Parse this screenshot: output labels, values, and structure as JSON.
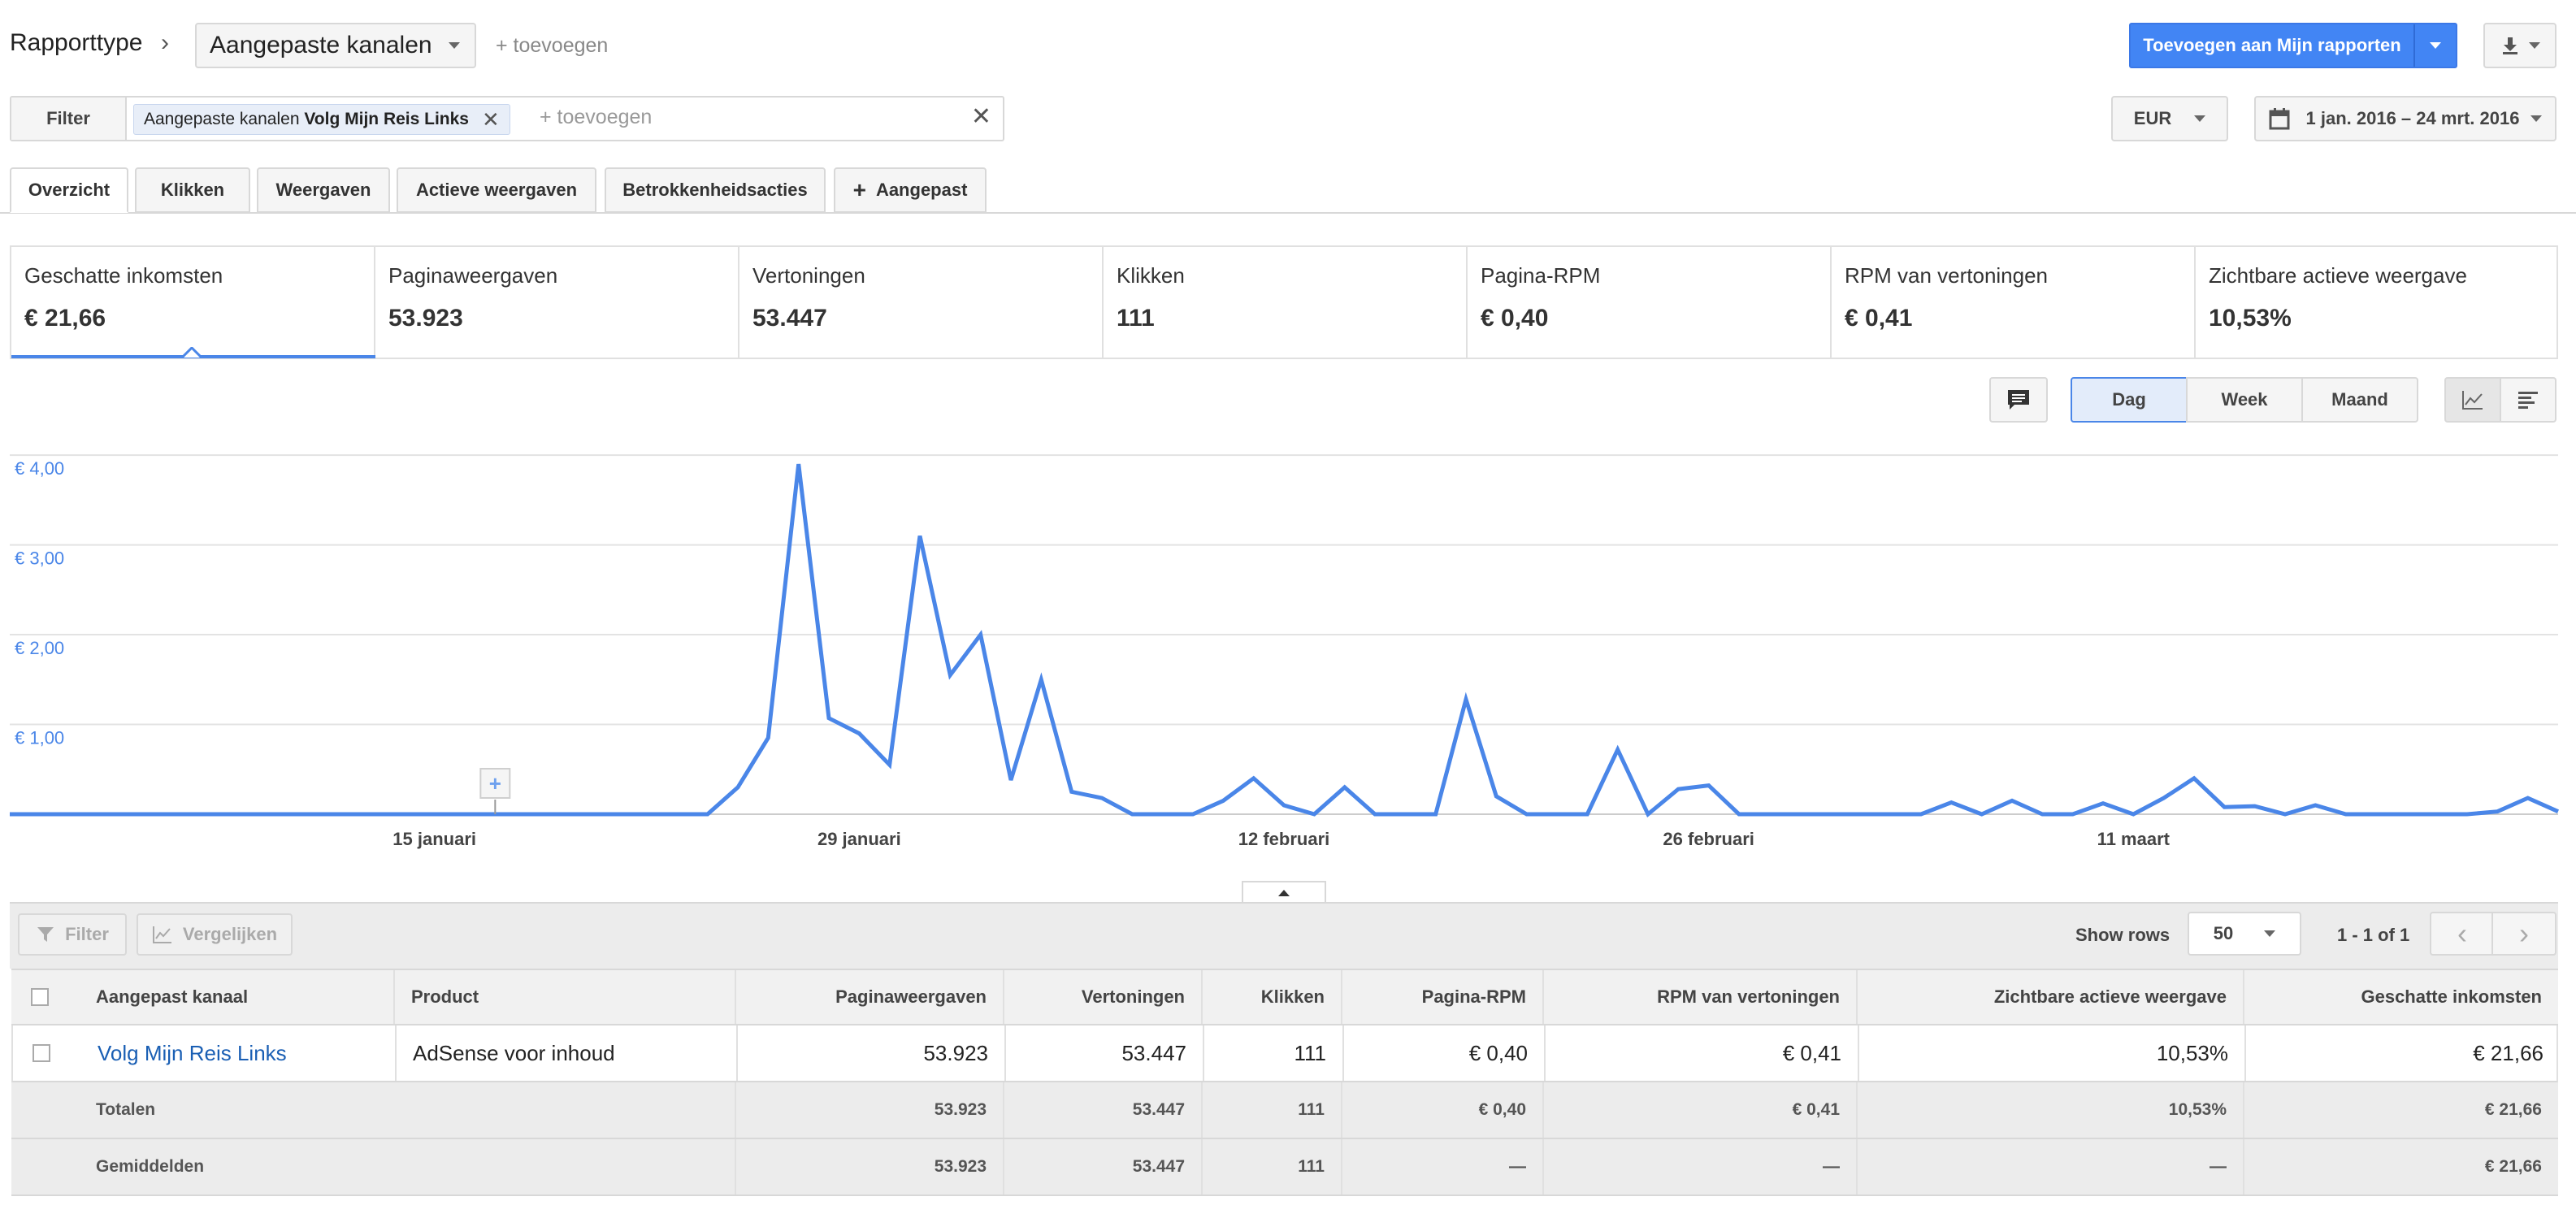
{
  "header": {
    "report_type_label": "Rapporttype",
    "report_select": "Aangepaste kanalen",
    "add_link": "+ toevoegen",
    "add_to_reports": "Toevoegen aan Mijn rapporten"
  },
  "filterbar": {
    "filter_label": "Filter",
    "chip_prefix": "Aangepaste kanalen",
    "chip_value": "Volg Mijn Reis Links",
    "add_placeholder": "+ toevoegen",
    "currency": "EUR",
    "date_range": "1 jan. 2016 – 24 mrt. 2016"
  },
  "tabs": [
    {
      "label": "Overzicht"
    },
    {
      "label": "Klikken"
    },
    {
      "label": "Weergaven"
    },
    {
      "label": "Actieve weergaven"
    },
    {
      "label": "Betrokkenheidsacties"
    },
    {
      "label": "Aangepast"
    }
  ],
  "metrics": [
    {
      "label": "Geschatte inkomsten",
      "value": "€ 21,66"
    },
    {
      "label": "Paginaweergaven",
      "value": "53.923"
    },
    {
      "label": "Vertoningen",
      "value": "53.447"
    },
    {
      "label": "Klikken",
      "value": "111"
    },
    {
      "label": "Pagina-RPM",
      "value": "€ 0,40"
    },
    {
      "label": "RPM van vertoningen",
      "value": "€ 0,41"
    },
    {
      "label": "Zichtbare actieve weergave",
      "value": "10,53%"
    }
  ],
  "granularity": {
    "day": "Dag",
    "week": "Week",
    "month": "Maand"
  },
  "chart_data": {
    "type": "line",
    "yticks": [
      "€ 4,00",
      "€ 3,00",
      "€ 2,00",
      "€ 1,00"
    ],
    "ylim": [
      0,
      4.2
    ],
    "xticks": [
      {
        "label": "15 januari",
        "day": 14
      },
      {
        "label": "29 januari",
        "day": 28
      },
      {
        "label": "12 februari",
        "day": 42
      },
      {
        "label": "26 februari",
        "day": 56
      },
      {
        "label": "11 maart",
        "day": 70
      }
    ],
    "annotation_day": 16,
    "series": [
      {
        "color": "#4a86e8",
        "values": [
          0,
          0,
          0,
          0,
          0,
          0,
          0,
          0,
          0,
          0,
          0,
          0,
          0,
          0,
          0,
          0,
          0,
          0,
          0,
          0,
          0,
          0,
          0,
          0,
          0.3,
          0.85,
          3.9,
          1.07,
          0.9,
          0.55,
          3.1,
          1.55,
          2.0,
          0.38,
          1.5,
          0.25,
          0.18,
          0,
          0,
          0,
          0.15,
          0.4,
          0.1,
          0,
          0.3,
          0,
          0,
          0,
          1.28,
          0.2,
          0,
          0,
          0,
          0.72,
          0,
          0.28,
          0.32,
          0,
          0,
          0,
          0,
          0,
          0,
          0,
          0.13,
          0,
          0.15,
          0,
          0,
          0.12,
          0,
          0.18,
          0.4,
          0.08,
          0.09,
          0,
          0.1,
          0,
          0,
          0,
          0,
          0,
          0.03,
          0.18,
          0.03
        ]
      }
    ]
  },
  "table": {
    "filter_btn": "Filter",
    "compare_btn": "Vergelijken",
    "show_rows_label": "Show rows",
    "rows_value": "50",
    "pagination": "1 - 1 of 1",
    "columns": [
      "Aangepast kanaal",
      "Product",
      "Paginaweergaven",
      "Vertoningen",
      "Klikken",
      "Pagina-RPM",
      "RPM van vertoningen",
      "Zichtbare actieve weergave",
      "Geschatte inkomsten"
    ],
    "rows": [
      {
        "cells": [
          "Volg Mijn Reis Links",
          "AdSense voor inhoud",
          "53.923",
          "53.447",
          "111",
          "€ 0,40",
          "€ 0,41",
          "10,53%",
          "€ 21,66"
        ]
      }
    ],
    "totals": {
      "label": "Totalen",
      "cells": [
        "53.923",
        "53.447",
        "111",
        "€ 0,40",
        "€ 0,41",
        "10,53%",
        "€ 21,66"
      ]
    },
    "averages": {
      "label": "Gemiddelden",
      "cells": [
        "53.923",
        "53.447",
        "111",
        "—",
        "—",
        "—",
        "€ 21,66"
      ]
    }
  }
}
